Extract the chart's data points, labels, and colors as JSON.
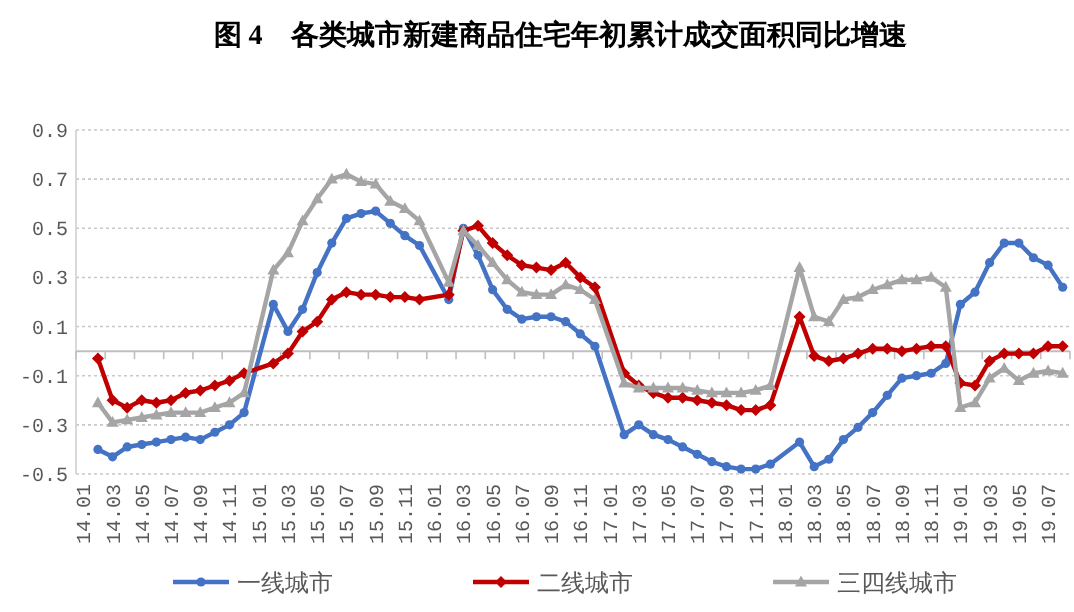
{
  "chart_data": {
    "type": "line",
    "title": "图 4　各类城市新建商品住宅年初累计成交面积同比增速",
    "categories": [
      "14.01",
      null,
      "14.03",
      null,
      "14.05",
      null,
      "14.07",
      null,
      "14.09",
      null,
      "14.11",
      null,
      "15.01",
      null,
      "15.03",
      null,
      "15.05",
      null,
      "15.07",
      null,
      "15.09",
      null,
      "15.11",
      null,
      "16.01",
      null,
      "16.03",
      null,
      "16.05",
      null,
      "16.07",
      null,
      "16.09",
      null,
      "16.11",
      null,
      "17.01",
      null,
      "17.03",
      null,
      "17.05",
      null,
      "17.07",
      null,
      "17.09",
      null,
      "17.11",
      null,
      "18.01",
      null,
      "18.03",
      null,
      "18.05",
      null,
      "18.07",
      null,
      "18.09",
      null,
      "18.11",
      null,
      "19.01",
      null,
      "19.03",
      null,
      "19.05",
      null,
      "19.07",
      null
    ],
    "series": [
      {
        "name": "一线城市",
        "color": "#4472c4",
        "marker": "circle",
        "values": [
          null,
          -0.4,
          -0.43,
          -0.39,
          -0.38,
          -0.37,
          -0.36,
          -0.35,
          -0.36,
          -0.33,
          -0.3,
          -0.25,
          null,
          0.19,
          0.08,
          0.17,
          0.32,
          0.44,
          0.54,
          0.56,
          0.57,
          0.52,
          0.47,
          0.43,
          null,
          0.21,
          0.5,
          0.39,
          0.25,
          0.17,
          0.13,
          0.14,
          0.14,
          0.12,
          0.07,
          0.02,
          null,
          -0.34,
          -0.3,
          -0.34,
          -0.36,
          -0.39,
          -0.42,
          -0.45,
          -0.47,
          -0.48,
          -0.48,
          -0.46,
          null,
          -0.37,
          -0.47,
          -0.44,
          -0.36,
          -0.31,
          -0.25,
          -0.18,
          -0.11,
          -0.1,
          -0.09,
          -0.05,
          0.19,
          0.24,
          0.36,
          0.44,
          0.44,
          0.38,
          0.35,
          0.26
        ]
      },
      {
        "name": "二线城市",
        "color": "#c00000",
        "marker": "diamond",
        "values": [
          null,
          -0.03,
          -0.2,
          -0.23,
          -0.2,
          -0.21,
          -0.2,
          -0.17,
          -0.16,
          -0.14,
          -0.12,
          -0.09,
          null,
          -0.05,
          -0.01,
          0.08,
          0.12,
          0.21,
          0.24,
          0.23,
          0.23,
          0.22,
          0.22,
          0.21,
          null,
          0.23,
          0.49,
          0.51,
          0.44,
          0.39,
          0.35,
          0.34,
          0.33,
          0.36,
          0.3,
          0.26,
          null,
          -0.09,
          -0.14,
          -0.17,
          -0.19,
          -0.19,
          -0.2,
          -0.21,
          -0.22,
          -0.24,
          -0.24,
          -0.22,
          null,
          0.14,
          -0.02,
          -0.04,
          -0.03,
          -0.01,
          0.01,
          0.01,
          0.0,
          0.01,
          0.02,
          0.02,
          -0.13,
          -0.14,
          -0.04,
          -0.01,
          -0.01,
          -0.01,
          0.02,
          0.02
        ]
      },
      {
        "name": "三四线城市",
        "color": "#a5a5a5",
        "marker": "triangle",
        "values": [
          null,
          -0.21,
          -0.29,
          -0.28,
          -0.27,
          -0.26,
          -0.25,
          -0.25,
          -0.25,
          -0.23,
          -0.21,
          -0.17,
          null,
          0.33,
          0.4,
          0.53,
          0.62,
          0.7,
          0.72,
          0.69,
          0.68,
          0.61,
          0.58,
          0.53,
          null,
          0.28,
          0.49,
          0.43,
          0.36,
          0.29,
          0.24,
          0.23,
          0.23,
          0.27,
          0.25,
          0.21,
          null,
          -0.13,
          -0.15,
          -0.15,
          -0.15,
          -0.15,
          -0.16,
          -0.17,
          -0.17,
          -0.17,
          -0.16,
          -0.14,
          null,
          0.34,
          0.14,
          0.12,
          0.21,
          0.22,
          0.25,
          0.27,
          0.29,
          0.29,
          0.3,
          0.26,
          -0.23,
          -0.21,
          -0.11,
          -0.07,
          -0.12,
          -0.09,
          -0.08,
          -0.09
        ]
      }
    ],
    "ylim": [
      -0.5,
      0.9
    ],
    "yticks": [
      -0.5,
      -0.3,
      -0.1,
      0.1,
      0.3,
      0.5,
      0.7,
      0.9
    ],
    "grid": "y",
    "legend": "bottom",
    "line_style": "solid"
  }
}
